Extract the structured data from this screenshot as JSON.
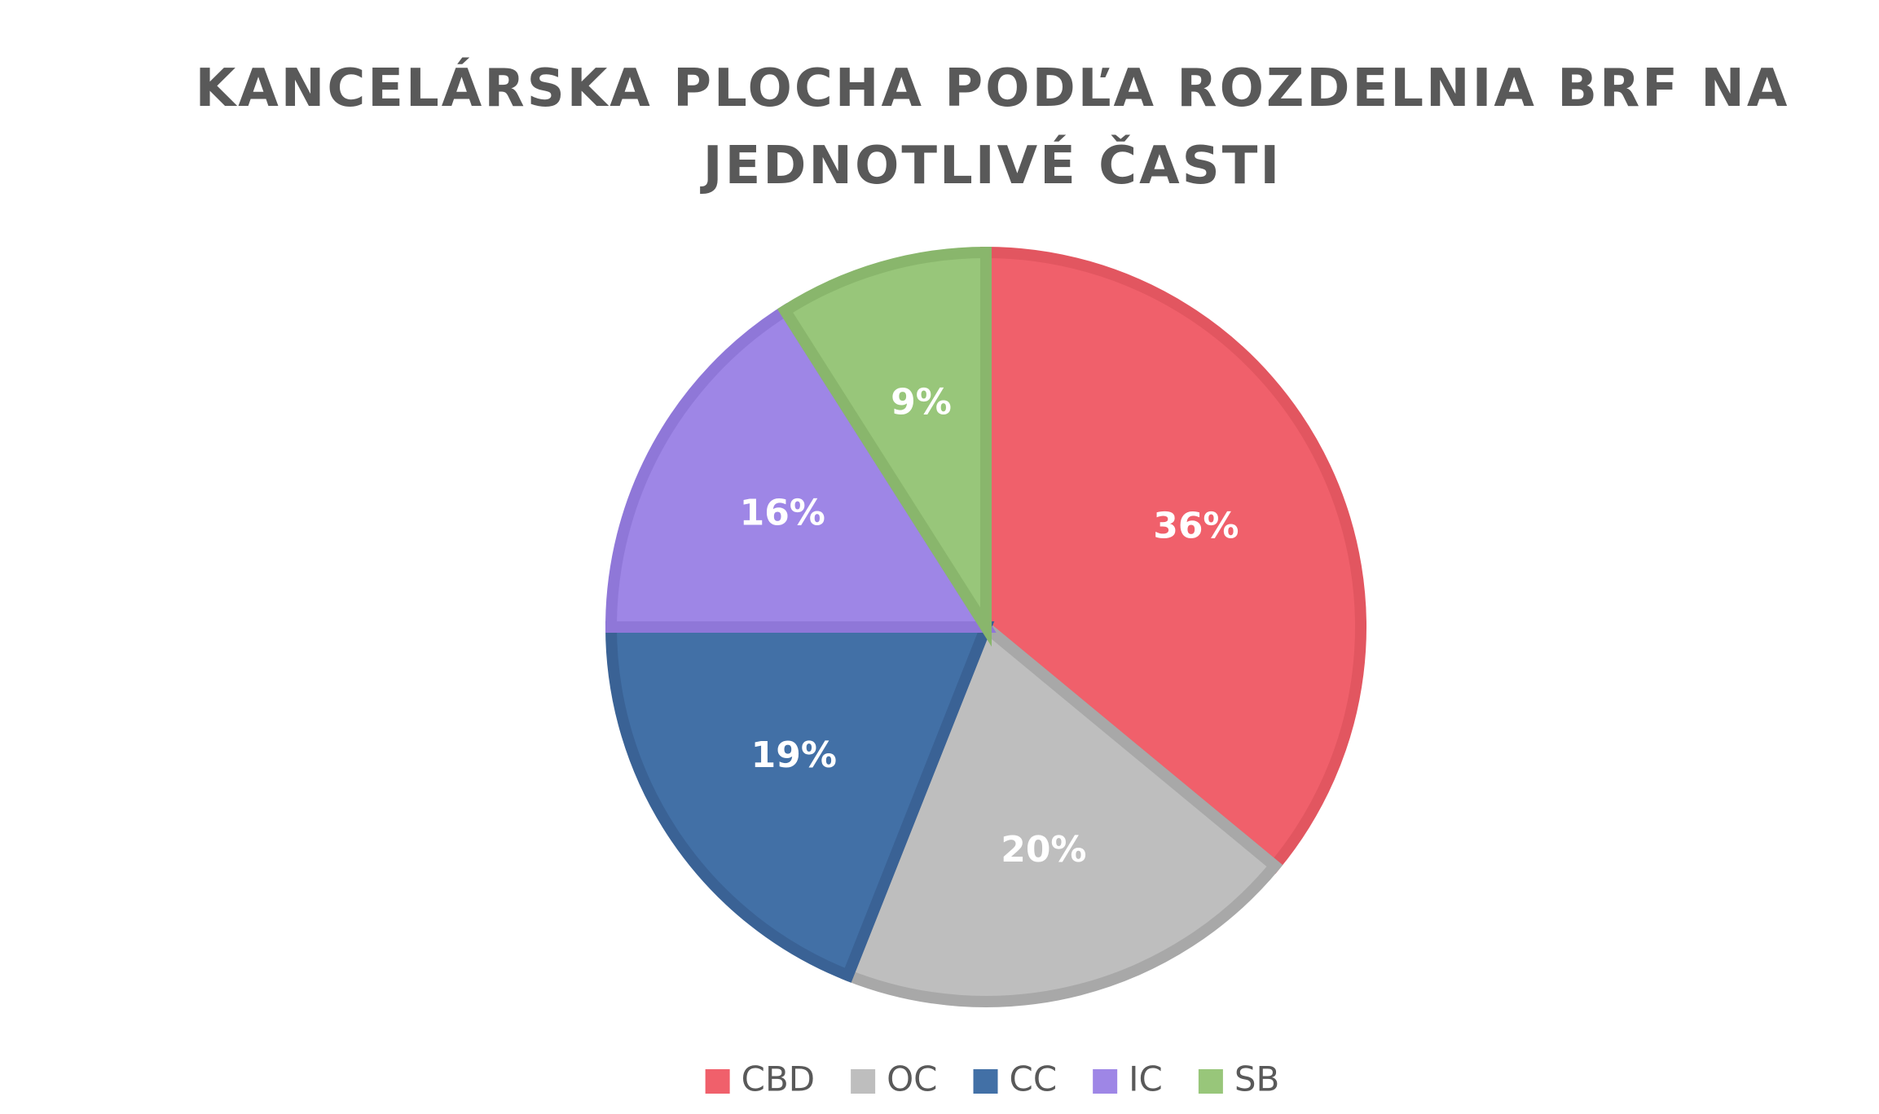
{
  "chart_data": {
    "type": "pie",
    "title": "KANCELÁRSKA PLOCHA PODĽA ROZDELNIA BRF NA JEDNOTLIVÉ ČASTI",
    "title_lines": [
      "KANCELÁRSKA PLOCHA PODĽA ROZDELNIA BRF NA",
      "JEDNOTLIVÉ ČASTI"
    ],
    "categories": [
      "CBD",
      "OC",
      "CC",
      "IC",
      "SB"
    ],
    "values": [
      36,
      20,
      19,
      16,
      9
    ],
    "labels": [
      "36%",
      "20%",
      "19%",
      "16%",
      "9%"
    ],
    "colors": [
      "#F0606B",
      "#BEBEBE",
      "#4270A6",
      "#9E86E6",
      "#98C67A"
    ],
    "stroke_colors": [
      "#E25660",
      "#A8A8A8",
      "#3A6295",
      "#8F77D8",
      "#89B66C"
    ],
    "start_angle_deg": 0,
    "direction": "clockwise",
    "legend_position": "bottom"
  }
}
